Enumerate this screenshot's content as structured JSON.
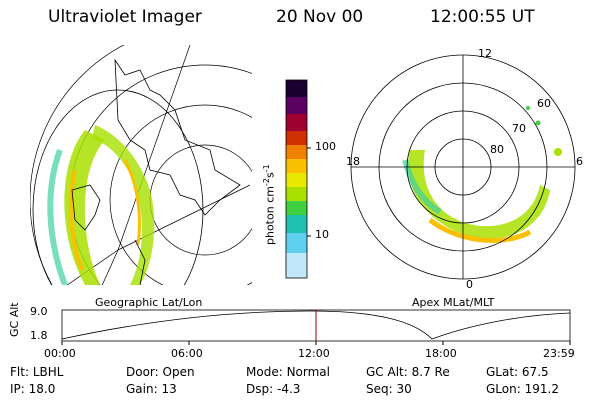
{
  "header": {
    "instrument": "Ultraviolet Imager",
    "date": "20 Nov 00",
    "time": "12:00:55 UT"
  },
  "left_panel": {
    "label": "Geographic Lat/Lon"
  },
  "right_panel": {
    "label": "Apex MLat/MLT",
    "mlt_labels": [
      "12",
      "18",
      "6",
      "0"
    ],
    "mlat_labels": [
      "60",
      "70",
      "80"
    ]
  },
  "colorbar": {
    "unit_label": "photon cm",
    "unit_sup1": "-2",
    "unit_mid": "s",
    "unit_sup2": "-1",
    "ticks": [
      "100",
      "10"
    ],
    "colors": [
      "#1a0030",
      "#5a0060",
      "#a00030",
      "#d03000",
      "#f08000",
      "#f8c000",
      "#e8e800",
      "#a8e000",
      "#40d040",
      "#20c0b0",
      "#60d0f0",
      "#c0e8f8"
    ]
  },
  "timeline": {
    "ylabel": "GC Alt",
    "yticks": [
      "9.0",
      "1.8"
    ],
    "xticks": [
      "00:00",
      "06:00",
      "12:00",
      "18:00",
      "23:59"
    ],
    "current_marker_color": "#a00000"
  },
  "info": {
    "rows": [
      [
        {
          "label": "Flt:",
          "value": "LBHL"
        },
        {
          "label": "Door:",
          "value": "Open"
        },
        {
          "label": "Mode:",
          "value": "Normal"
        },
        {
          "label": "GC Alt:",
          "value": "8.7 Re"
        },
        {
          "label": "GLat:",
          "value": "67.5"
        }
      ],
      [
        {
          "label": "IP:",
          "value": "18.0"
        },
        {
          "label": "Gain:",
          "value": "13"
        },
        {
          "label": "Dsp:",
          "value": "-4.3"
        },
        {
          "label": "Seq:",
          "value": "30"
        },
        {
          "label": "GLon:",
          "value": "191.2"
        }
      ]
    ]
  }
}
